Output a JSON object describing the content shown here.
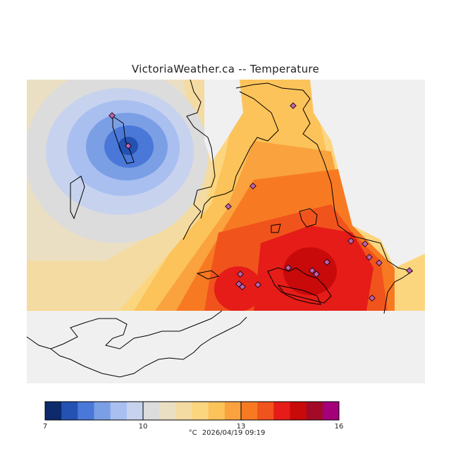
{
  "title": "VictoriaWeather.ca -- Temperature",
  "colorbar": {
    "unit": "°C",
    "min": 7,
    "max": 16,
    "tick_labels": [
      "7",
      "10",
      "13",
      "16"
    ],
    "tick_values": [
      7,
      10,
      13,
      16
    ],
    "colors": [
      "#0d2a6b",
      "#2452b3",
      "#4a78d8",
      "#7b9fe5",
      "#a9bff0",
      "#c7d3ee",
      "#dcdcdc",
      "#ebdfc3",
      "#f4dba2",
      "#fcd57f",
      "#fcc35a",
      "#f9a23e",
      "#f77a22",
      "#f1531c",
      "#e51c18",
      "#c80a0a",
      "#a30a28",
      "#a4007a"
    ]
  },
  "timestamp": "2026/04/19 09:19",
  "stations_count_hint": "stations shown as diamonds"
}
